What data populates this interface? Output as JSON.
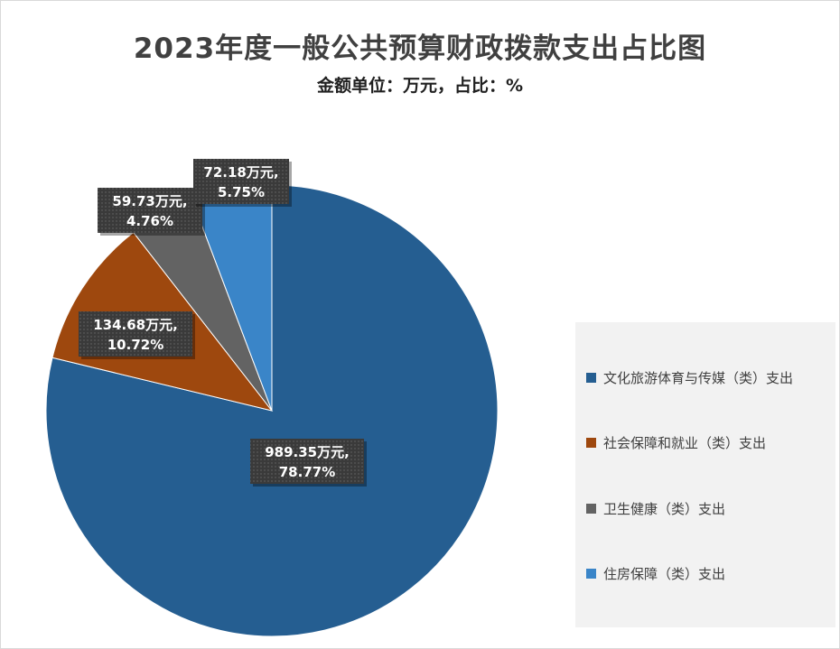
{
  "chart_data": {
    "type": "pie",
    "title": "2023年度一般公共预算财政拨款支出占比图",
    "subtitle": "金额单位：万元，占比：%",
    "slices": [
      {
        "name": "文化旅游体育与传媒（类）支出",
        "value": 989.35,
        "percent": 78.77,
        "label_line1": "989.35万元,",
        "label_line2": "78.77%",
        "color": "#255e91"
      },
      {
        "name": "社会保障和就业（类）支出",
        "value": 134.68,
        "percent": 10.72,
        "label_line1": "134.68万元,",
        "label_line2": "10.72%",
        "color": "#9e480e"
      },
      {
        "name": "卫生健康（类）支出",
        "value": 59.73,
        "percent": 4.76,
        "label_line1": "59.73万元,",
        "label_line2": "4.76%",
        "color": "#636363"
      },
      {
        "name": "住房保障（类）支出",
        "value": 72.18,
        "percent": 5.75,
        "label_line1": "72.18万元,",
        "label_line2": "5.75%",
        "color": "#3a85c8"
      }
    ],
    "legend_position": "right"
  }
}
